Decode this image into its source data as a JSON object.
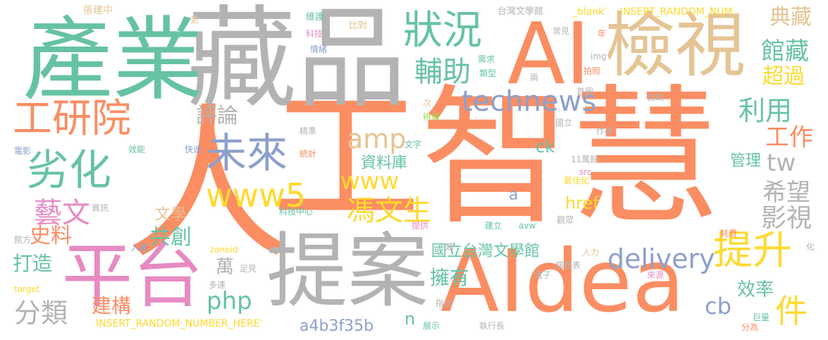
{
  "palette": {
    "orange": "#fb8d62",
    "gray": "#b3b3b3",
    "green": "#66c2a5",
    "tan": "#e5c494",
    "pink": "#e78ac3",
    "blue": "#8da0cb",
    "yellow": "#ffd92f",
    "lime": "#a6d854"
  },
  "words": [
    {
      "text": "工智慧"
    },
    {
      "text": "人"
    },
    {
      "text": "藏品"
    },
    {
      "text": "產業"
    },
    {
      "text": "AIdea"
    },
    {
      "text": "提案"
    },
    {
      "text": "AI"
    },
    {
      "text": "檢視"
    },
    {
      "text": "平台"
    },
    {
      "text": "工研院"
    },
    {
      "text": "狀況"
    },
    {
      "text": "未來"
    },
    {
      "text": "劣化"
    },
    {
      "text": "提升"
    },
    {
      "text": "www5"
    },
    {
      "text": "technews"
    },
    {
      "text": "輔助"
    },
    {
      "text": "delivery"
    },
    {
      "text": "amp"
    },
    {
      "text": "www"
    },
    {
      "text": "馮文生"
    },
    {
      "text": "藝文"
    },
    {
      "text": "希望"
    },
    {
      "text": "影視"
    },
    {
      "text": "件"
    },
    {
      "text": "利用"
    },
    {
      "text": "館藏"
    },
    {
      "text": "典藏"
    },
    {
      "text": "超過"
    },
    {
      "text": "工作"
    },
    {
      "text": "tw"
    },
    {
      "text": "php"
    },
    {
      "text": "分類"
    },
    {
      "text": "評論"
    },
    {
      "text": "cb"
    },
    {
      "text": "國立台灣文學館"
    },
    {
      "text": "擁有"
    },
    {
      "text": "a4b3f35b"
    },
    {
      "text": "史料"
    },
    {
      "text": "共創"
    },
    {
      "text": "文學"
    },
    {
      "text": "資料庫"
    },
    {
      "text": "打造"
    },
    {
      "text": "建構"
    },
    {
      "text": "效率"
    },
    {
      "text": "管理"
    },
    {
      "text": "href"
    },
    {
      "text": "ck"
    },
    {
      "text": "萬"
    },
    {
      "text": "a"
    },
    {
      "text": "n"
    },
    {
      "text": "INSERT_RANDOM_NUMBER_HERE'"
    },
    {
      "text": "INSERT_RANDOM_NUM"
    },
    {
      "text": "_blank'"
    },
    {
      "text": "台灣文學館"
    },
    {
      "text": "張建中"
    },
    {
      "text": "比對"
    },
    {
      "text": "更"
    },
    {
      "text": "維護"
    },
    {
      "text": "科技"
    },
    {
      "text": "情緒"
    },
    {
      "text": "常見"
    },
    {
      "text": "年"
    },
    {
      "text": "img"
    },
    {
      "text": "需求"
    },
    {
      "text": "類型"
    },
    {
      "text": "拍照"
    },
    {
      "text": "兩"
    },
    {
      "text": "首圖"
    },
    {
      "text": "協助"
    },
    {
      "text": "次"
    },
    {
      "text": "辨識"
    },
    {
      "text": "國立"
    },
    {
      "text": "精準"
    },
    {
      "text": "作者"
    },
    {
      "text": "文字"
    },
    {
      "text": "效能"
    },
    {
      "text": "快速"
    },
    {
      "text": "統計"
    },
    {
      "text": "電影"
    },
    {
      "text": "11萬餘"
    },
    {
      "text": "src"
    },
    {
      "text": "最佳化"
    },
    {
      "text": "資訊"
    },
    {
      "text": "科技中心"
    },
    {
      "text": "提供"
    },
    {
      "text": "建立"
    },
    {
      "text": "avw"
    },
    {
      "text": "觀眾"
    },
    {
      "text": "耗費"
    },
    {
      "text": "館方"
    },
    {
      "text": "入藏"
    },
    {
      "text": "zoneid"
    },
    {
      "text": "類"
    },
    {
      "text": "人力"
    },
    {
      "text": "化"
    },
    {
      "text": "足見"
    },
    {
      "text": "多達"
    },
    {
      "text": "電子"
    },
    {
      "text": "病歷表"
    },
    {
      "text": "來源"
    },
    {
      "text": "target"
    },
    {
      "text": "指出"
    },
    {
      "text": "展示"
    },
    {
      "text": "執行長"
    },
    {
      "text": "巨量"
    },
    {
      "text": "分為"
    }
  ]
}
